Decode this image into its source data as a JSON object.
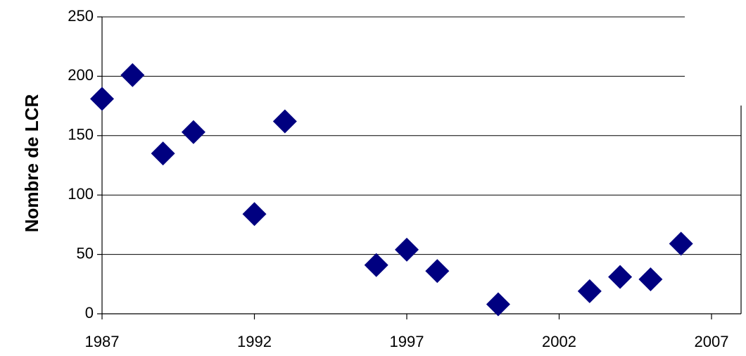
{
  "chart_data": {
    "type": "scatter",
    "ylabel": "Nombre de LCR",
    "xlabel": "",
    "xlim": [
      1987,
      2007
    ],
    "ylim": [
      0,
      250
    ],
    "x_ticks": [
      "1987",
      "1992",
      "1997",
      "2002",
      "2007"
    ],
    "y_ticks": [
      "0",
      "50",
      "100",
      "150",
      "200",
      "250"
    ],
    "grid": "horizontal",
    "marker": "diamond",
    "marker_color": "#000080",
    "points": [
      {
        "x": 1987,
        "y": 181
      },
      {
        "x": 1988,
        "y": 201
      },
      {
        "x": 1989,
        "y": 135
      },
      {
        "x": 1990,
        "y": 153
      },
      {
        "x": 1992,
        "y": 84
      },
      {
        "x": 1993,
        "y": 162
      },
      {
        "x": 1996,
        "y": 41
      },
      {
        "x": 1997,
        "y": 54
      },
      {
        "x": 1998,
        "y": 36
      },
      {
        "x": 2000,
        "y": 8
      },
      {
        "x": 2003,
        "y": 19
      },
      {
        "x": 2004,
        "y": 31
      },
      {
        "x": 2005,
        "y": 29
      },
      {
        "x": 2006,
        "y": 59
      }
    ]
  }
}
